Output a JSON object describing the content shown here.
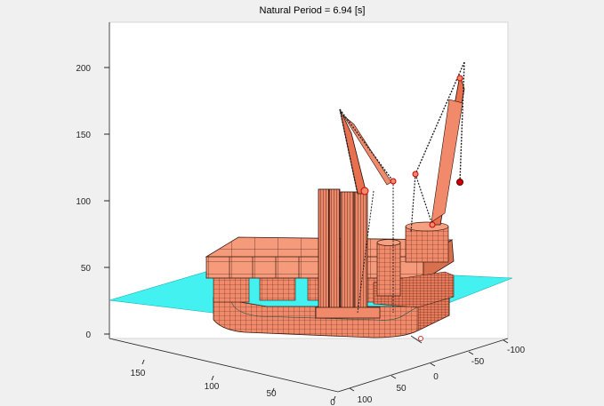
{
  "chart_data": {
    "type": "3d-surface",
    "title": "Natural Period = 6.94 [s]",
    "z_axis": {
      "ticks": [
        0,
        50,
        100,
        150,
        200
      ],
      "labels": [
        "0",
        "50",
        "100",
        "150",
        "200"
      ]
    },
    "x_axis": {
      "ticks": [
        150,
        100,
        50,
        0
      ],
      "labels": [
        "150",
        "100",
        "50",
        "0"
      ]
    },
    "y_axis": {
      "ticks": [
        100,
        50,
        0,
        -50,
        -100
      ],
      "labels": [
        "100",
        "50",
        "0",
        "-50",
        "-100"
      ]
    },
    "grid": false,
    "colors": {
      "structure_face": "#f08a6a",
      "structure_edge": "#3a1a10",
      "water_plane": "#22eeee",
      "crane_tip": "#cc0000",
      "background": "#f0f0f0",
      "axes_background": "#ffffff"
    }
  }
}
